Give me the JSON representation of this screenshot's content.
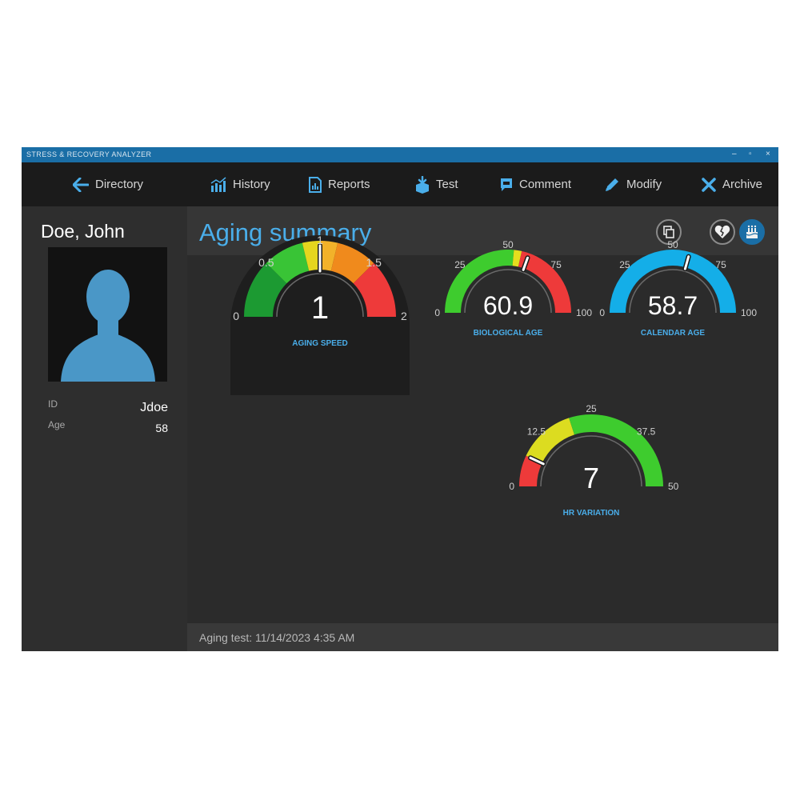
{
  "window": {
    "title": "STRESS & RECOVERY ANALYZER",
    "controls": [
      "–",
      "▫",
      "×"
    ]
  },
  "toolbar": {
    "directory": {
      "label": "Directory",
      "icon": "arrow-left-icon"
    },
    "history": {
      "label": "History",
      "icon": "bar-chart-icon"
    },
    "reports": {
      "label": "Reports",
      "icon": "report-document-icon"
    },
    "test": {
      "label": "Test",
      "icon": "test-download-icon"
    },
    "comment": {
      "label": "Comment",
      "icon": "comment-icon"
    },
    "modify": {
      "label": "Modify",
      "icon": "pencil-icon"
    },
    "archive": {
      "label": "Archive",
      "icon": "x-icon"
    }
  },
  "patient": {
    "name": "Doe, John",
    "id_label": "ID",
    "id_value": "Jdoe",
    "age_label": "Age",
    "age_value": "58"
  },
  "main": {
    "title": "Aging summary",
    "header_buttons": [
      "copy-report-icon",
      "broken-heart-icon",
      "birthday-cake-icon"
    ],
    "status": "Aging test: 11/14/2023 4:35 AM"
  },
  "gauges": [
    {
      "key": "aging_speed",
      "label": "AGING SPEED",
      "value_text": "1",
      "min": 0,
      "max": 2,
      "value": 1,
      "ticks": [
        "0",
        "0.5",
        "1",
        "1.5",
        "2"
      ],
      "segments": [
        {
          "from": 0,
          "to": 0.5,
          "color": "#1c9a32"
        },
        {
          "from": 0.5,
          "to": 0.85,
          "color": "#39c436"
        },
        {
          "from": 0.85,
          "to": 1.0,
          "color": "#e5d61e"
        },
        {
          "from": 1.0,
          "to": 1.15,
          "color": "#f2b22a"
        },
        {
          "from": 1.15,
          "to": 1.5,
          "color": "#f08a1c"
        },
        {
          "from": 1.5,
          "to": 2.0,
          "color": "#ee3a3a"
        }
      ]
    },
    {
      "key": "biological_age",
      "label": "BIOLOGICAL AGE",
      "value_text": "60.9",
      "min": 0,
      "max": 100,
      "value": 60.9,
      "ticks": [
        "0",
        "25",
        "50",
        "75",
        "100"
      ],
      "segments": [
        {
          "from": 0,
          "to": 53,
          "color": "#3ecc2e"
        },
        {
          "from": 53,
          "to": 57,
          "color": "#e4de1e"
        },
        {
          "from": 57,
          "to": 100,
          "color": "#ee3a3a"
        }
      ]
    },
    {
      "key": "calendar_age",
      "label": "CALENDAR AGE",
      "value_text": "58.7",
      "min": 0,
      "max": 100,
      "value": 58.7,
      "ticks": [
        "0",
        "25",
        "50",
        "75",
        "100"
      ],
      "segments": [
        {
          "from": 0,
          "to": 100,
          "color": "#14aee8"
        }
      ]
    },
    {
      "key": "hr_variation",
      "label": "HR VARIATION",
      "value_text": "7",
      "min": 0,
      "max": 50,
      "value": 7,
      "ticks": [
        "0",
        "12.5",
        "25",
        "37.5",
        "50"
      ],
      "segments": [
        {
          "from": 0,
          "to": 7,
          "color": "#ee3a3a"
        },
        {
          "from": 7,
          "to": 20,
          "color": "#dcdc20"
        },
        {
          "from": 20,
          "to": 50,
          "color": "#3ecc2e"
        }
      ]
    }
  ],
  "colors": {
    "accent": "#4aaeea",
    "titlebar": "#1a6ea6",
    "gauge_label": "#4aaeea"
  }
}
